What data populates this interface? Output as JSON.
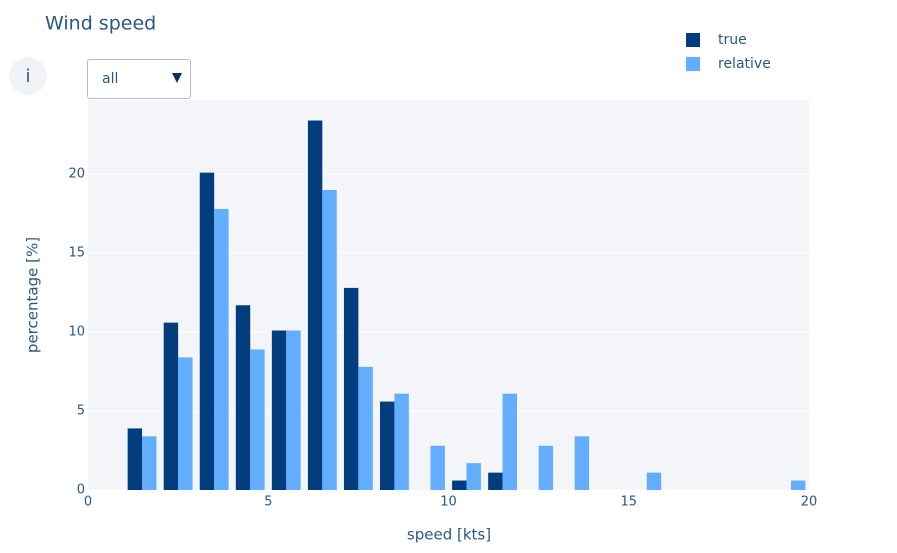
{
  "controls": {
    "info": "i",
    "dropdown": "all"
  },
  "chart_data": {
    "type": "bar",
    "title": "Wind speed",
    "x_label": "speed [kts]",
    "y_label": "percentage [%]",
    "x": [
      1.5,
      2.5,
      3.5,
      4.5,
      5.5,
      6.5,
      7.5,
      8.5,
      9.5,
      10.5,
      11.5,
      12.5,
      13.5,
      14.5,
      15.5,
      16.5,
      17.5,
      18.5,
      19.5
    ],
    "series": [
      {
        "name": "true",
        "color": "#023e7d",
        "values": [
          3.9,
          10.6,
          20.1,
          11.7,
          10.1,
          23.4,
          12.8,
          5.6,
          0,
          0.6,
          1.1,
          0,
          0,
          0,
          0,
          0,
          0,
          0,
          0
        ]
      },
      {
        "name": "relative",
        "color": "#62adfd",
        "values": [
          3.4,
          8.4,
          17.8,
          8.9,
          10.1,
          19.0,
          7.8,
          6.1,
          2.8,
          1.7,
          6.1,
          2.8,
          3.4,
          0,
          1.1,
          0,
          0,
          0,
          0.6
        ]
      }
    ],
    "bar_width": 0.4,
    "xlim": [
      0,
      20
    ],
    "xticks": [
      0,
      5,
      10,
      15,
      20
    ],
    "ylim": [
      0,
      24.7
    ],
    "yticks": [
      0,
      5,
      10,
      15,
      20
    ],
    "grid": true,
    "legend": "top-right"
  }
}
